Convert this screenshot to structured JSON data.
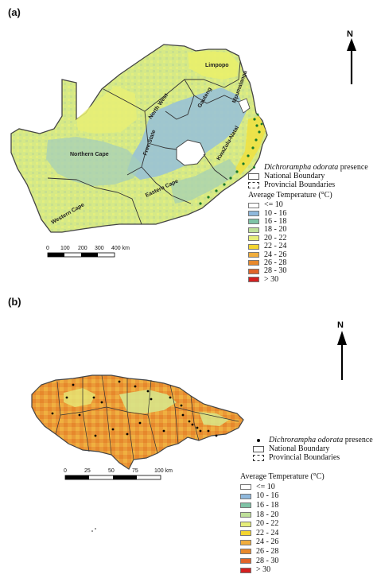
{
  "panel_a": {
    "label": "(a)",
    "provinces": [
      "Limpopo",
      "Mpumalanga",
      "North West",
      "Gauteng",
      "Northern Cape",
      "Free State",
      "KwaZulu-Natal",
      "Eastern Cape",
      "Western Cape"
    ],
    "scale_ticks": [
      "0",
      "100",
      "200",
      "300",
      "400 km"
    ],
    "north": "N",
    "legend": {
      "presence_species": "Dichrorampha odorata",
      "presence_suffix": "presence",
      "national": "National Boundary",
      "provincial": "Provincial Boundaries",
      "title": "Average Temperature (°C)",
      "classes": [
        {
          "label": "<= 10",
          "color": "#ffffff"
        },
        {
          "label": "10 - 16",
          "color": "#8fb8dc"
        },
        {
          "label": "16 - 18",
          "color": "#7fc3a6"
        },
        {
          "label": "18 - 20",
          "color": "#bfe09a"
        },
        {
          "label": "20 - 22",
          "color": "#e6ee7a"
        },
        {
          "label": "22 - 24",
          "color": "#f4d530"
        },
        {
          "label": "24 - 26",
          "color": "#f0ad3c"
        },
        {
          "label": "26 - 28",
          "color": "#e8892c"
        },
        {
          "label": "28 - 30",
          "color": "#e0642a"
        },
        {
          "label": "> 30",
          "color": "#d42020"
        }
      ]
    }
  },
  "panel_b": {
    "label": "(b)",
    "scale_ticks": [
      "0",
      "25",
      "50",
      "75",
      "100 km"
    ],
    "north": "N",
    "legend": {
      "presence_species": "Dichrorampha odorata",
      "presence_suffix": "presence",
      "national": "National Boundary",
      "provincial": "Provincial Boundaries",
      "title": "Average Temperature (°C)",
      "classes": [
        {
          "label": "<= 10",
          "color": "#ffffff"
        },
        {
          "label": "10 - 16",
          "color": "#8fb8dc"
        },
        {
          "label": "16 - 18",
          "color": "#7fc3a6"
        },
        {
          "label": "18 - 20",
          "color": "#bfe09a"
        },
        {
          "label": "20 - 22",
          "color": "#e6ee7a"
        },
        {
          "label": "22 - 24",
          "color": "#f4d530"
        },
        {
          "label": "24 - 26",
          "color": "#f0ad3c"
        },
        {
          "label": "26 - 28",
          "color": "#e8892c"
        },
        {
          "label": "28 - 30",
          "color": "#e0642a"
        },
        {
          "label": "> 30",
          "color": "#d42020"
        }
      ]
    }
  }
}
